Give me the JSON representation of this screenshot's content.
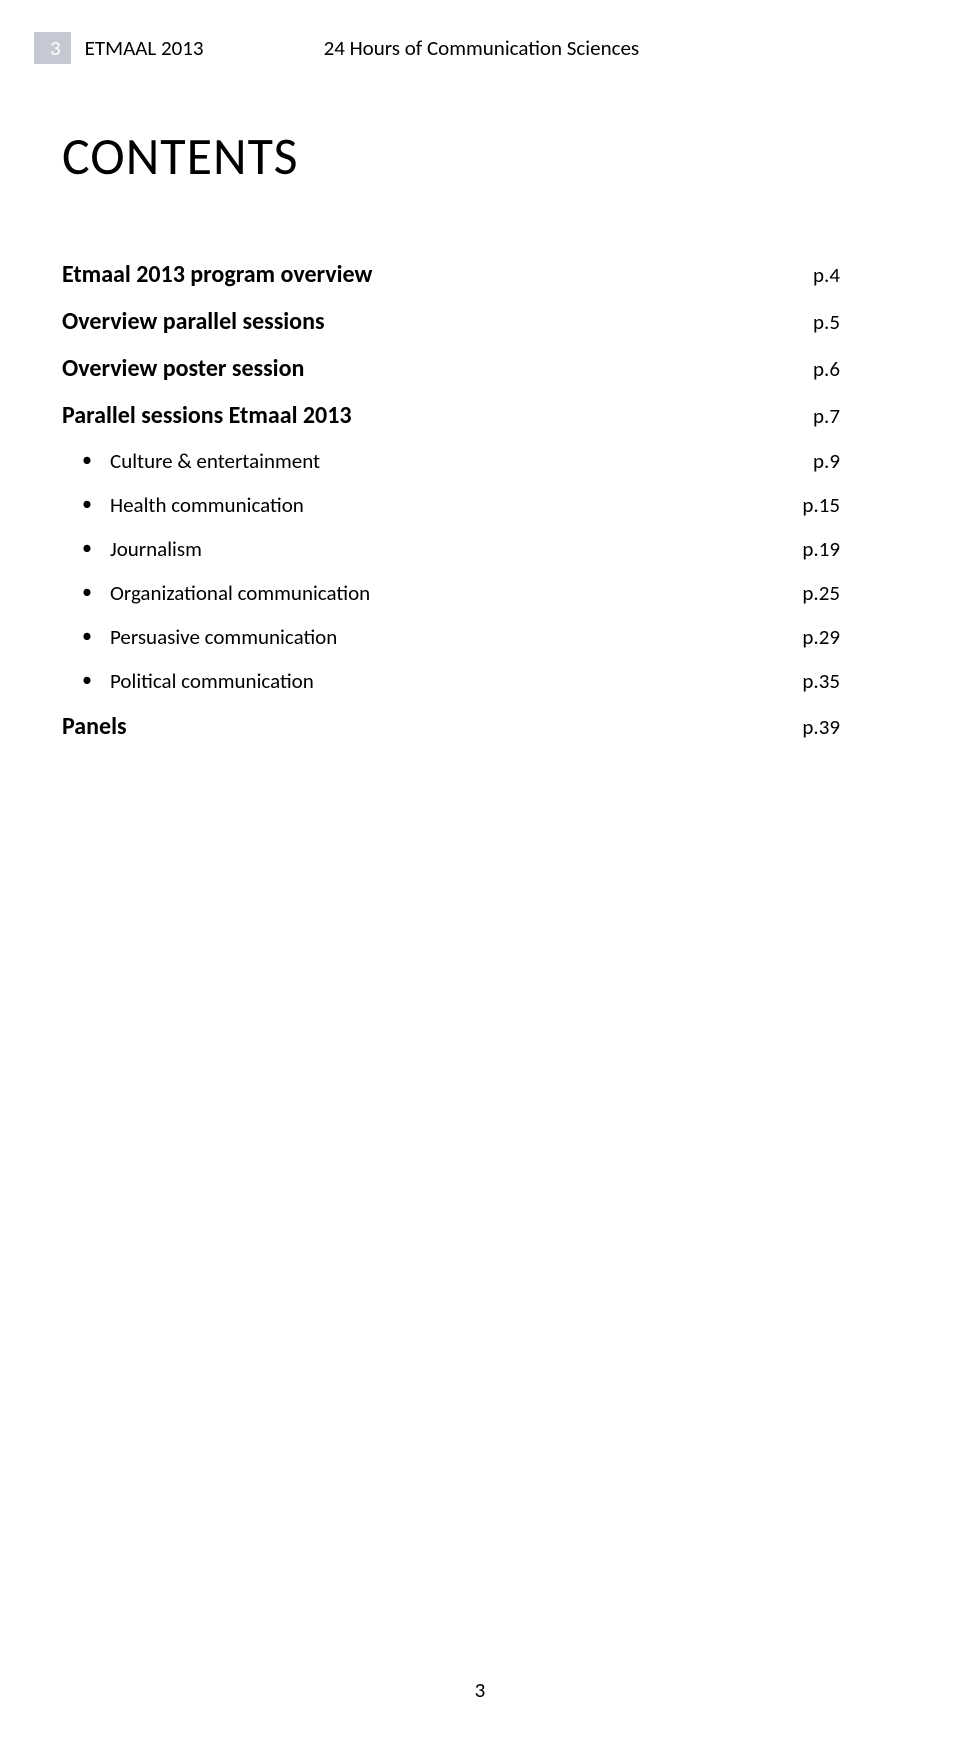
{
  "header": {
    "page_number": "3",
    "title": "ETMAAL 2013",
    "subtitle": "24 Hours of Communication Sciences"
  },
  "main_title": "CONTENTS",
  "toc": {
    "items": [
      {
        "label": "Etmaal 2013 program overview",
        "page": "p.4",
        "bold": true
      },
      {
        "label": "Overview parallel sessions",
        "page": "p.5",
        "bold": true
      },
      {
        "label": "Overview poster session",
        "page": "p.6",
        "bold": true
      },
      {
        "label": "Parallel sessions Etmaal 2013",
        "page": "p.7",
        "bold": true
      }
    ],
    "subitems": [
      {
        "label": "Culture & entertainment",
        "page": "p.9"
      },
      {
        "label": "Health communication",
        "page": "p.15"
      },
      {
        "label": "Journalism",
        "page": "p.19"
      },
      {
        "label": "Organizational communication",
        "page": "p.25"
      },
      {
        "label": "Persuasive communication",
        "page": "p.29"
      },
      {
        "label": "Political communication",
        "page": "p.35"
      }
    ],
    "panels": {
      "label": "Panels",
      "page": "p.39"
    }
  },
  "footer": {
    "page_number": "3"
  },
  "colors": {
    "pagenum_box_bg": "#c4c9d4",
    "pagenum_box_fg": "#ffffff",
    "text": "#000000",
    "background": "#ffffff"
  },
  "typography": {
    "header_fontsize": 21,
    "title_fontsize": 52,
    "toc_bold_fontsize": 24,
    "toc_sub_fontsize": 21,
    "footer_fontsize": 21
  }
}
